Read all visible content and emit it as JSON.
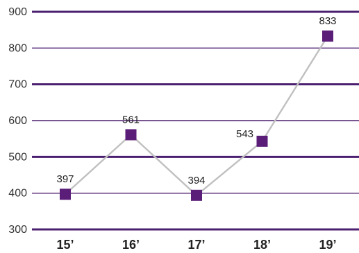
{
  "chart_data": {
    "type": "line",
    "title": "",
    "xlabel": "",
    "ylabel": "",
    "categories": [
      "15’",
      "16’",
      "17’",
      "18’",
      "19’"
    ],
    "series": [
      {
        "values": [
          397,
          561,
          394,
          543,
          833
        ],
        "data_labels": [
          "397",
          "561",
          "394",
          "543",
          "833"
        ]
      }
    ],
    "ylim": [
      300,
      900
    ],
    "yticks": [
      300,
      400,
      500,
      600,
      700,
      800,
      900
    ],
    "ytick_labels": [
      "300",
      "400",
      "500",
      "600",
      "700",
      "800",
      "900"
    ],
    "grid": true,
    "legend": "none",
    "colors": {
      "grid": "#4b1f6f",
      "line": "#c0c0c0",
      "marker": "#5a1d78"
    }
  }
}
